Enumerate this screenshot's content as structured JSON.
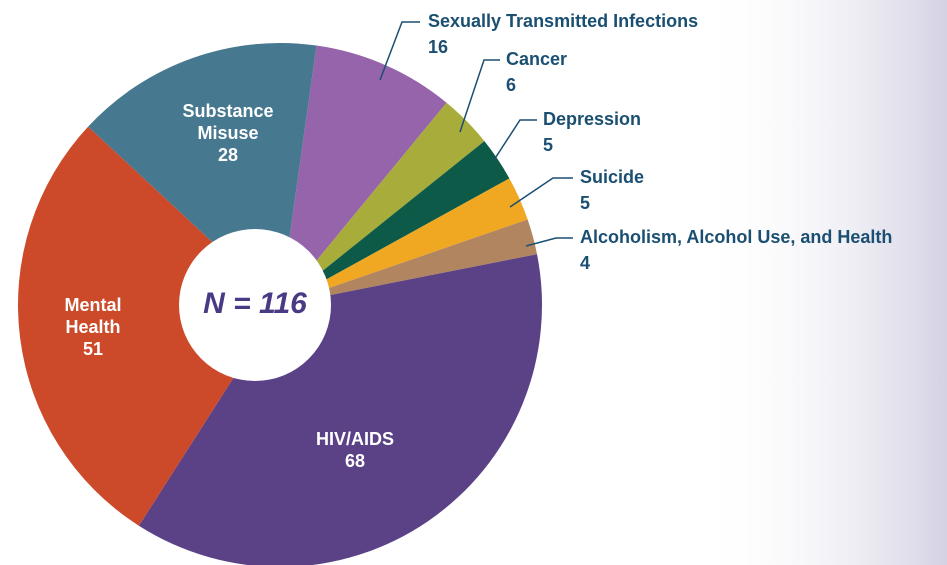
{
  "chart_data": {
    "type": "donut",
    "center_label": "N = 116",
    "categories": [
      "Sexually Transmitted Infections",
      "Cancer",
      "Depression",
      "Suicide",
      "Alcoholism, Alcohol Use, and Health",
      "HIV/AIDS",
      "Mental Health",
      "Substance Misuse"
    ],
    "values": [
      16,
      6,
      5,
      5,
      4,
      68,
      51,
      28
    ],
    "colors": [
      "#9564ab",
      "#a8ac3a",
      "#0d5a48",
      "#f0a722",
      "#b08560",
      "#5b4186",
      "#cc4a2a",
      "#46788f"
    ]
  }
}
